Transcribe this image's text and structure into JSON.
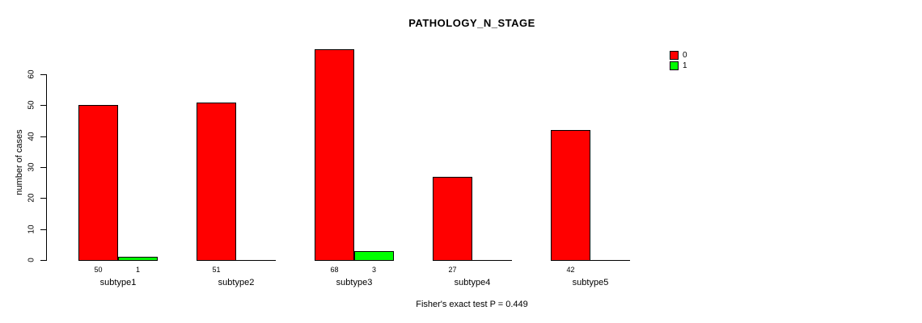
{
  "chart_data": {
    "type": "bar",
    "title": "PATHOLOGY_N_STAGE",
    "categories": [
      "subtype1",
      "subtype2",
      "subtype3",
      "subtype4",
      "subtype5"
    ],
    "series": [
      {
        "name": "0",
        "color": "#FF0000",
        "values": [
          50,
          51,
          68,
          27,
          42
        ]
      },
      {
        "name": "1",
        "color": "#00FF00",
        "values": [
          1,
          0,
          3,
          0,
          0
        ]
      }
    ],
    "bar_count_labels": [
      [
        "50",
        "1"
      ],
      [
        "51",
        null
      ],
      [
        "68",
        "3"
      ],
      [
        "27",
        null
      ],
      [
        "42",
        null
      ]
    ],
    "xlabel": "",
    "ylabel": "number of cases",
    "yticks": [
      0,
      10,
      20,
      30,
      40,
      50,
      60
    ],
    "ylim": [
      0,
      68
    ],
    "grid": false,
    "legend_position": "top-right",
    "legend_items": [
      {
        "label": "0",
        "color": "#FF0000"
      },
      {
        "label": "1",
        "color": "#00FF00"
      }
    ],
    "annotation": "Fisher's exact test P = 0.449",
    "background_color": "#FFFFFF",
    "axis_color": "#000000"
  }
}
